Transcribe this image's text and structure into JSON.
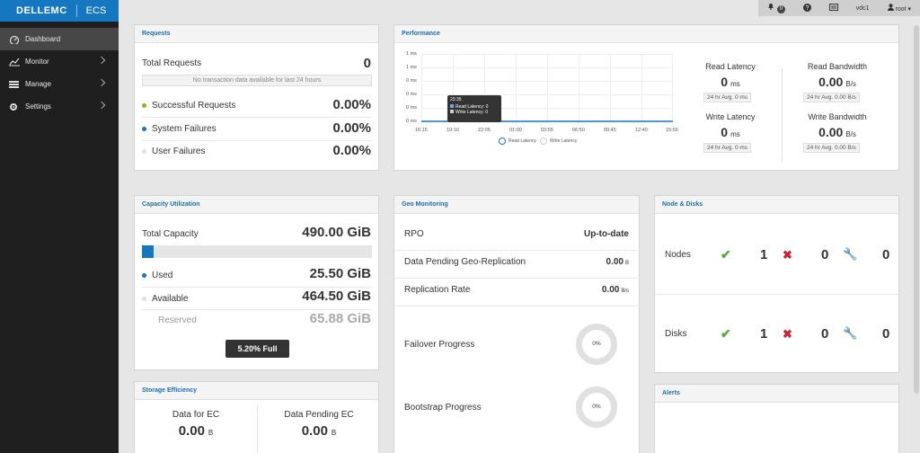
{
  "app": {
    "brand": "DELLEMC",
    "product": "ECS"
  },
  "sidebar": {
    "items": [
      {
        "label": "Dashboard",
        "icon": "dashboard-icon",
        "active": true
      },
      {
        "label": "Monitor",
        "icon": "monitor-chart-icon"
      },
      {
        "label": "Manage",
        "icon": "manage-icon"
      },
      {
        "label": "Settings",
        "icon": "gear-icon"
      }
    ]
  },
  "topbar": {
    "alerts_count": "0",
    "vdc": "vdc1",
    "user": "root"
  },
  "requests": {
    "title": "Requests",
    "total_label": "Total Requests",
    "total_value": "0",
    "no_data": "No transaction data available for last 24 hours",
    "rows": [
      {
        "label": "Successful Requests",
        "value": "0.00%",
        "color": "#8fb31c"
      },
      {
        "label": "System Failures",
        "value": "0.00%",
        "color": "#1577bf"
      },
      {
        "label": "User Failures",
        "value": "0.00%",
        "color": "#d8e4ee"
      }
    ]
  },
  "performance": {
    "title": "Performance",
    "y_ticks": [
      "1 ms",
      "1 ms",
      "0 ms",
      "0 ms",
      "0 ms",
      "0 ms"
    ],
    "x_ticks": [
      "16:15",
      "19:10",
      "22:05",
      "01:00",
      "03:55",
      "06:50",
      "09:45",
      "12:40",
      "15:55"
    ],
    "tooltip": {
      "time": "23:35",
      "line1": "Read Latency: 0",
      "line2": "Write Latency: 0"
    },
    "legend": [
      "Read Latency",
      "Write Latency"
    ],
    "metrics": {
      "read_latency": {
        "title": "Read Latency",
        "value": "0",
        "unit": "ms",
        "avg": "24 hr Avg. 0 ms"
      },
      "read_bandwidth": {
        "title": "Read Bandwidth",
        "value": "0.00",
        "unit": "B/s",
        "avg": "24 hr Avg. 0.00 B/s"
      },
      "write_latency": {
        "title": "Write Latency",
        "value": "0",
        "unit": "ms",
        "avg": "24 hr Avg. 0 ms"
      },
      "write_bandwidth": {
        "title": "Write Bandwidth",
        "value": "0.00",
        "unit": "B/s",
        "avg": "24 hr Avg. 0.00 B/s"
      }
    }
  },
  "capacity": {
    "title": "Capacity Utilization",
    "total_label": "Total Capacity",
    "total_value": "490.00 GiB",
    "used_fraction": 0.052,
    "used_label": "Used",
    "used_value": "25.50 GiB",
    "available_label": "Available",
    "available_value": "464.50 GiB",
    "reserved_label": "Reserved",
    "reserved_value": "65.88 GiB",
    "full_label": "5.20% Full"
  },
  "geo": {
    "title": "Geo Monitoring",
    "rpo_label": "RPO",
    "rpo_value": "Up-to-date",
    "pending_label": "Data Pending Geo-Replication",
    "pending_value": "0.00",
    "pending_unit": "B",
    "rate_label": "Replication Rate",
    "rate_value": "0.00",
    "rate_unit": "B/s",
    "failover_label": "Failover Progress",
    "failover_value": "0%",
    "bootstrap_label": "Bootstrap Progress",
    "bootstrap_value": "0%"
  },
  "nodes": {
    "title": "Node & Disks",
    "nodes_label": "Nodes",
    "nodes_good": "1",
    "nodes_bad": "0",
    "nodes_maint": "0",
    "disks_label": "Disks",
    "disks_good": "1",
    "disks_bad": "0",
    "disks_maint": "0"
  },
  "storage": {
    "title": "Storage Efficiency",
    "ec_label": "Data for EC",
    "ec_value": "0.00",
    "ec_unit": "B",
    "pending_label": "Data Pending EC",
    "pending_value": "0.00",
    "pending_unit": "B"
  },
  "alerts": {
    "title": "Alerts"
  }
}
